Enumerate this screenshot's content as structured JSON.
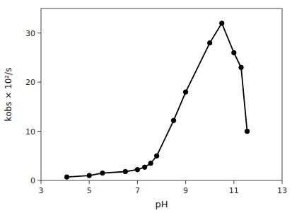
{
  "chart_data": {
    "type": "line",
    "x": [
      4.07,
      5.0,
      5.55,
      6.5,
      7.0,
      7.3,
      7.55,
      7.8,
      8.5,
      9.0,
      10.0,
      10.5,
      11.0,
      11.3,
      11.55
    ],
    "y": [
      0.7,
      1.0,
      1.5,
      1.8,
      2.2,
      2.7,
      3.5,
      5.0,
      12.2,
      18.0,
      28.0,
      32.0,
      26.0,
      23.0,
      10.0
    ],
    "xlabel": "pH",
    "ylabel": "kobs × 10²/s",
    "xlim": [
      3,
      13
    ],
    "ylim": [
      0,
      35
    ],
    "xticks": [
      3,
      5,
      7,
      9,
      11,
      13
    ],
    "yticks": [
      0,
      10,
      20,
      30
    ],
    "color": "#000000",
    "marker": "circle",
    "grid": false
  }
}
